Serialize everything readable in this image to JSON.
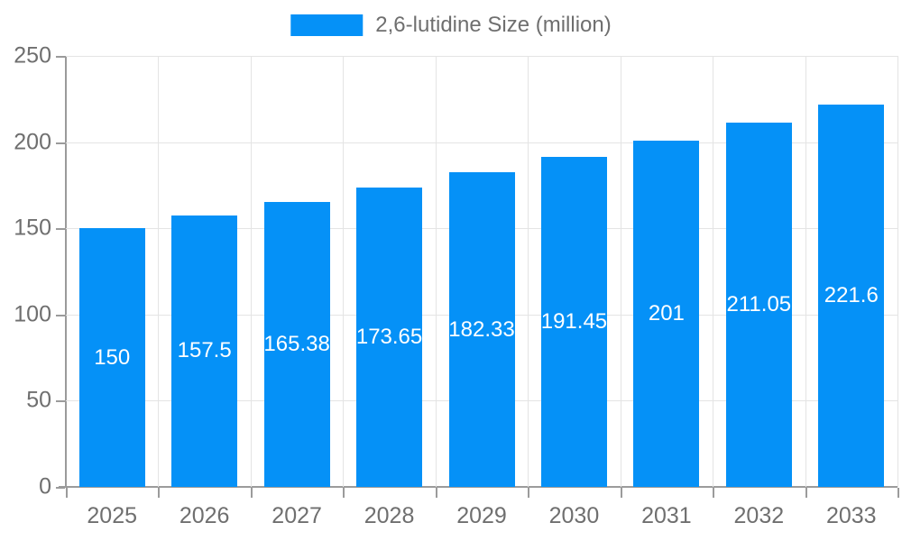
{
  "chart_data": {
    "type": "bar",
    "title": "",
    "legend_label": "2,6-lutidine Size (million)",
    "legend_position": "top-center",
    "categories": [
      "2025",
      "2026",
      "2027",
      "2028",
      "2029",
      "2030",
      "2031",
      "2032",
      "2033"
    ],
    "series": [
      {
        "name": "2,6-lutidine Size (million)",
        "values": [
          150,
          157.5,
          165.38,
          173.65,
          182.33,
          191.45,
          201,
          211.05,
          221.6
        ]
      }
    ],
    "value_labels": [
      "150",
      "157.5",
      "165.38",
      "173.65",
      "182.33",
      "191.45",
      "201",
      "211.05",
      "221.6"
    ],
    "xlabel": "",
    "ylabel": "",
    "ylim": [
      0,
      250
    ],
    "yticks": [
      0,
      50,
      100,
      150,
      200,
      250
    ],
    "grid": true,
    "colors": {
      "bar": "#0591F7",
      "axis_line": "#9b9b9b",
      "gridline": "#e4e4e4",
      "tick_text": "#6f6f6f",
      "data_label": "#ffffff",
      "background": "#ffffff"
    }
  }
}
